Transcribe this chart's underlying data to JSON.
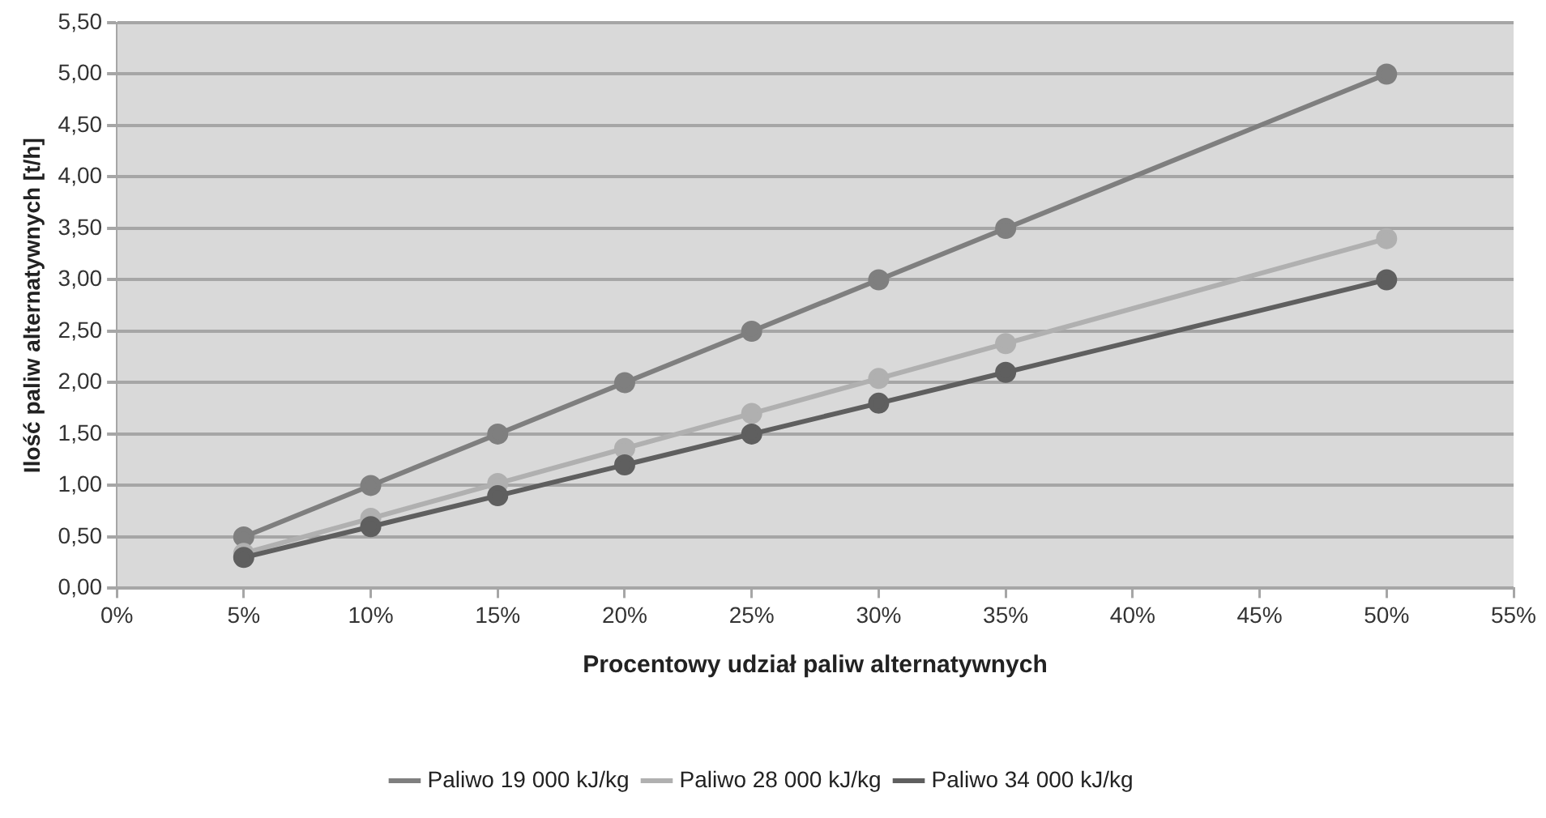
{
  "chart_data": {
    "type": "line",
    "xlabel": "Procentowy udział paliw alternatywnych",
    "ylabel": "Ilość paliw alternatywnych [t/h]",
    "x": [
      5,
      10,
      15,
      20,
      25,
      30,
      35,
      50
    ],
    "series": [
      {
        "name": "Paliwo 19 000 kJ/kg",
        "color": "#7f7f7f",
        "values": [
          0.5,
          1.0,
          1.5,
          2.0,
          2.5,
          3.0,
          3.5,
          5.0
        ]
      },
      {
        "name": "Paliwo 28 000 kJ/kg",
        "color": "#b0b0b0",
        "values": [
          0.34,
          0.68,
          1.02,
          1.36,
          1.7,
          2.04,
          2.38,
          3.4
        ]
      },
      {
        "name": "Paliwo 34 000 kJ/kg",
        "color": "#5f5f5f",
        "values": [
          0.3,
          0.6,
          0.9,
          1.2,
          1.5,
          1.8,
          2.1,
          3.0
        ]
      }
    ],
    "xlim": [
      0,
      55
    ],
    "xticks": [
      {
        "value": 0,
        "label": "0%"
      },
      {
        "value": 5,
        "label": "5%"
      },
      {
        "value": 10,
        "label": "10%"
      },
      {
        "value": 15,
        "label": "15%"
      },
      {
        "value": 20,
        "label": "20%"
      },
      {
        "value": 25,
        "label": "25%"
      },
      {
        "value": 30,
        "label": "30%"
      },
      {
        "value": 35,
        "label": "35%"
      },
      {
        "value": 40,
        "label": "40%"
      },
      {
        "value": 45,
        "label": "45%"
      },
      {
        "value": 50,
        "label": "50%"
      },
      {
        "value": 55,
        "label": "55%"
      }
    ],
    "ylim": [
      0,
      5.5
    ],
    "yticks": [
      {
        "value": 0,
        "label": "0,00"
      },
      {
        "value": 0.5,
        "label": "0,50"
      },
      {
        "value": 1,
        "label": "1,00"
      },
      {
        "value": 1.5,
        "label": "1,50"
      },
      {
        "value": 2,
        "label": "2,00"
      },
      {
        "value": 2.5,
        "label": "2,50"
      },
      {
        "value": 3,
        "label": "3,00"
      },
      {
        "value": 3.5,
        "label": "3,50"
      },
      {
        "value": 4,
        "label": "4,00"
      },
      {
        "value": 4.5,
        "label": "4,50"
      },
      {
        "value": 5,
        "label": "5,00"
      },
      {
        "value": 5.5,
        "label": "5,50"
      }
    ],
    "grid": "y",
    "legend": "bottom",
    "marker": "circle",
    "line_style": "solid"
  }
}
